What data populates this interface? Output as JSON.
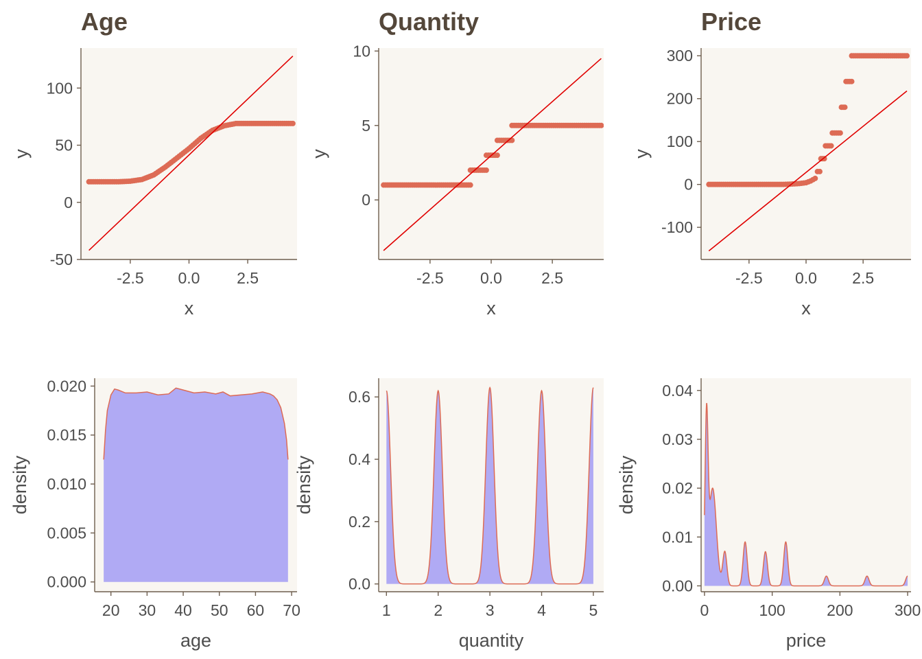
{
  "colors": {
    "panel": "#f9f6f1",
    "points": "#dd6b55",
    "refline": "#e00000",
    "density_fill": "#b0aaf4",
    "density_line": "#dd6b55",
    "axis": "#6e5e4e",
    "title": "#54473a",
    "text": "#4d4d4d"
  },
  "chart_data": [
    {
      "type": "scatter",
      "subtype": "qq-plot",
      "title": "Age",
      "xlabel": "x",
      "ylabel": "y",
      "xlim": [
        -4.6,
        4.6
      ],
      "ylim": [
        -50,
        135
      ],
      "xticks": [
        -2.5,
        0,
        2.5
      ],
      "xtick_labels": [
        "-2.5",
        "0.0",
        "2.5"
      ],
      "yticks": [
        -50,
        0,
        50,
        100
      ],
      "ytick_labels": [
        "-50",
        "0",
        "50",
        "100"
      ],
      "reference_line": [
        [
          -4.26,
          -42
        ],
        [
          4.42,
          128
        ]
      ],
      "sample_curve": [
        [
          -4.26,
          18
        ],
        [
          -3.0,
          18
        ],
        [
          -2.5,
          18.5
        ],
        [
          -2.0,
          20
        ],
        [
          -1.5,
          24
        ],
        [
          -1.0,
          31
        ],
        [
          -0.5,
          39
        ],
        [
          0.0,
          47
        ],
        [
          0.5,
          56
        ],
        [
          1.0,
          63
        ],
        [
          1.5,
          67
        ],
        [
          2.0,
          69
        ],
        [
          2.5,
          69
        ],
        [
          4.42,
          69
        ]
      ]
    },
    {
      "type": "scatter",
      "subtype": "qq-plot",
      "title": "Quantity",
      "xlabel": "x",
      "ylabel": "y",
      "xlim": [
        -4.6,
        4.6
      ],
      "ylim": [
        -4.0,
        10.2
      ],
      "xticks": [
        -2.5,
        0,
        2.5
      ],
      "xtick_labels": [
        "-2.5",
        "0.0",
        "2.5"
      ],
      "yticks": [
        0,
        5,
        10
      ],
      "ytick_labels": [
        "0",
        "5",
        "10"
      ],
      "reference_line": [
        [
          -4.4,
          -3.4
        ],
        [
          4.5,
          9.5
        ]
      ],
      "steps": [
        {
          "y": 1,
          "x0": -4.4,
          "x1": -0.85
        },
        {
          "y": 2,
          "x0": -0.85,
          "x1": -0.2
        },
        {
          "y": 3,
          "x0": -0.2,
          "x1": 0.25
        },
        {
          "y": 4,
          "x0": 0.25,
          "x1": 0.85
        },
        {
          "y": 5,
          "x0": 0.85,
          "x1": 4.5
        }
      ]
    },
    {
      "type": "scatter",
      "subtype": "qq-plot",
      "title": "Price",
      "xlabel": "x",
      "ylabel": "y",
      "xlim": [
        -4.6,
        4.6
      ],
      "ylim": [
        -175,
        318
      ],
      "xticks": [
        -2.5,
        0,
        2.5
      ],
      "xtick_labels": [
        "-2.5",
        "0.0",
        "2.5"
      ],
      "yticks": [
        -100,
        0,
        100,
        200,
        300
      ],
      "ytick_labels": [
        "-100",
        "0",
        "100",
        "200",
        "300"
      ],
      "reference_line": [
        [
          -4.26,
          -155
        ],
        [
          4.42,
          218
        ]
      ],
      "sample_curve": [
        [
          -4.26,
          0
        ],
        [
          -1.0,
          0
        ],
        [
          -0.6,
          1
        ],
        [
          -0.3,
          2
        ],
        [
          0.0,
          4
        ],
        [
          0.2,
          8
        ],
        [
          0.4,
          14
        ]
      ],
      "steps": [
        {
          "y": 30,
          "x0": 0.5,
          "x1": 0.6
        },
        {
          "y": 60,
          "x0": 0.65,
          "x1": 0.8
        },
        {
          "y": 90,
          "x0": 0.85,
          "x1": 1.1
        },
        {
          "y": 120,
          "x0": 1.15,
          "x1": 1.5
        },
        {
          "y": 180,
          "x0": 1.55,
          "x1": 1.7
        },
        {
          "y": 240,
          "x0": 1.75,
          "x1": 2.0
        },
        {
          "y": 300,
          "x0": 2.0,
          "x1": 4.42
        }
      ]
    },
    {
      "type": "area",
      "subtype": "density",
      "title": "",
      "xlabel": "age",
      "ylabel": "density",
      "xlim": [
        15.5,
        71.5
      ],
      "ylim": [
        -0.001,
        0.0208
      ],
      "xticks": [
        20,
        30,
        40,
        50,
        60,
        70
      ],
      "xtick_labels": [
        "20",
        "30",
        "40",
        "50",
        "60",
        "70"
      ],
      "yticks": [
        0,
        0.005,
        0.01,
        0.015,
        0.02
      ],
      "ytick_labels": [
        "0.000",
        "0.005",
        "0.010",
        "0.015",
        "0.020"
      ],
      "x": [
        18,
        18.5,
        19,
        20,
        21,
        22,
        24,
        27,
        30,
        33,
        36,
        38,
        40,
        43,
        46,
        49,
        51,
        53,
        56,
        59,
        62,
        64,
        65,
        66,
        67,
        68,
        68.6,
        69
      ],
      "y": [
        0.0125,
        0.0155,
        0.0175,
        0.0191,
        0.0197,
        0.0196,
        0.0193,
        0.0193,
        0.0194,
        0.0191,
        0.0192,
        0.0198,
        0.0196,
        0.0193,
        0.0194,
        0.0192,
        0.0194,
        0.019,
        0.0191,
        0.0192,
        0.0194,
        0.0192,
        0.019,
        0.0186,
        0.0178,
        0.0162,
        0.0145,
        0.0125
      ]
    },
    {
      "type": "area",
      "subtype": "density",
      "title": "",
      "xlabel": "quantity",
      "ylabel": "density",
      "xlim": [
        0.85,
        5.2
      ],
      "ylim": [
        -0.025,
        0.66
      ],
      "xticks": [
        1,
        2,
        3,
        4,
        5
      ],
      "xtick_labels": [
        "1",
        "2",
        "3",
        "4",
        "5"
      ],
      "yticks": [
        0,
        0.2,
        0.4,
        0.6
      ],
      "ytick_labels": [
        "0.0",
        "0.2",
        "0.4",
        "0.6"
      ],
      "peaks": [
        {
          "x": 1,
          "y": 0.62
        },
        {
          "x": 2,
          "y": 0.62
        },
        {
          "x": 3,
          "y": 0.63
        },
        {
          "x": 4,
          "y": 0.62
        },
        {
          "x": 5,
          "y": 0.63
        }
      ],
      "peak_sd": 0.08,
      "x_range": [
        1,
        5
      ]
    },
    {
      "type": "area",
      "subtype": "density",
      "title": "",
      "xlabel": "price",
      "ylabel": "density",
      "xlim": [
        -5,
        305
      ],
      "ylim": [
        -0.0012,
        0.0425
      ],
      "xticks": [
        0,
        100,
        200,
        300
      ],
      "xtick_labels": [
        "0",
        "100",
        "200",
        "300"
      ],
      "yticks": [
        0,
        0.01,
        0.02,
        0.03,
        0.04
      ],
      "ytick_labels": [
        "0.00",
        "0.01",
        "0.02",
        "0.03",
        "0.04"
      ],
      "x_range": [
        0,
        300
      ],
      "components": [
        {
          "mu": 3,
          "sd": 2.2,
          "h": 0.032
        },
        {
          "mu": 12,
          "sd": 5.5,
          "h": 0.02
        },
        {
          "mu": 30,
          "sd": 3.0,
          "h": 0.007
        },
        {
          "mu": 60,
          "sd": 3.0,
          "h": 0.009
        },
        {
          "mu": 90,
          "sd": 3.0,
          "h": 0.007
        },
        {
          "mu": 120,
          "sd": 3.0,
          "h": 0.009
        },
        {
          "mu": 180,
          "sd": 3.0,
          "h": 0.002
        },
        {
          "mu": 240,
          "sd": 3.0,
          "h": 0.002
        },
        {
          "mu": 300,
          "sd": 3.0,
          "h": 0.002
        }
      ]
    }
  ]
}
